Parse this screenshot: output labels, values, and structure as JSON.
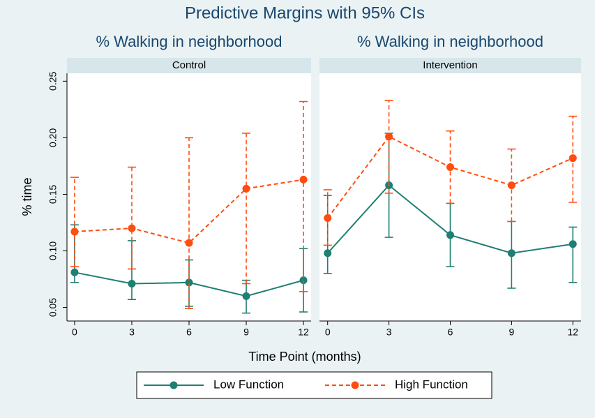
{
  "chart_data": {
    "type": "line",
    "title": "Predictive Margins with 95% CIs",
    "xlabel": "Time Point (months)",
    "ylabel": "% time",
    "x": [
      0,
      3,
      6,
      9,
      12
    ],
    "xlim": [
      -0.4,
      12.4
    ],
    "xticks": [
      0,
      3,
      6,
      9,
      12
    ],
    "ylim": [
      0.038,
      0.257
    ],
    "yticks": [
      {
        "value": 0.05,
        "label": "0.05"
      },
      {
        "value": 0.1,
        "label": "0.10"
      },
      {
        "value": 0.15,
        "label": "0.15"
      },
      {
        "value": 0.2,
        "label": "0.20"
      },
      {
        "value": 0.25,
        "label": "0.25"
      }
    ],
    "legend": "bottom",
    "series": [
      {
        "name": "Low Function",
        "color": "#1f7f73",
        "dashed": false
      },
      {
        "name": "High Function",
        "color": "#ff4c0f",
        "dashed": true
      }
    ],
    "panels": [
      {
        "title": "% Walking in neighborhood",
        "label": "Control",
        "series": [
          {
            "values": [
              0.081,
              0.071,
              0.072,
              0.06,
              0.074
            ],
            "ci_low": [
              0.072,
              0.057,
              0.051,
              0.045,
              0.046
            ],
            "ci_high": [
              0.123,
              0.109,
              0.092,
              0.074,
              0.102
            ]
          },
          {
            "values": [
              0.117,
              0.12,
              0.107,
              0.155,
              0.163
            ],
            "ci_low": [
              0.086,
              0.084,
              0.049,
              0.071,
              0.064
            ],
            "ci_high": [
              0.165,
              0.174,
              0.2,
              0.204,
              0.232
            ]
          }
        ]
      },
      {
        "title": "% Walking in neighborhood",
        "label": "Intervention",
        "series": [
          {
            "values": [
              0.098,
              0.158,
              0.114,
              0.098,
              0.106
            ],
            "ci_low": [
              0.08,
              0.112,
              0.086,
              0.067,
              0.072
            ],
            "ci_high": [
              0.149,
              0.204,
              0.142,
              0.126,
              0.121
            ]
          },
          {
            "values": [
              0.129,
              0.201,
              0.174,
              0.158,
              0.182
            ],
            "ci_low": [
              0.105,
              0.151,
              0.142,
              0.126,
              0.143
            ],
            "ci_high": [
              0.154,
              0.233,
              0.206,
              0.19,
              0.219
            ]
          }
        ]
      }
    ]
  }
}
